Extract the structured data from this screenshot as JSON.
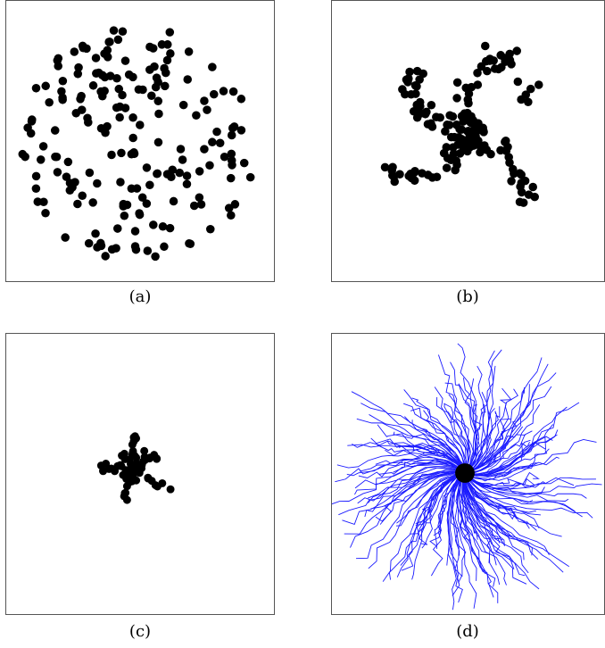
{
  "colors": {
    "particle": "#000000",
    "trajectory": "#1a1aff",
    "frame": "#555555"
  },
  "panels": [
    {
      "id": "a",
      "caption": "(a)"
    },
    {
      "id": "b",
      "caption": "(b)"
    },
    {
      "id": "c",
      "caption": "(c)"
    },
    {
      "id": "d",
      "caption": "(d)"
    }
  ]
}
